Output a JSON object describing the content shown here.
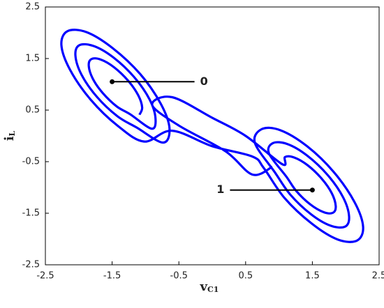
{
  "chart_data": {
    "type": "line",
    "xlabel": "v",
    "xlabel_sub": "C1",
    "ylabel": "i",
    "ylabel_sub": "L",
    "xlim": [
      -2.5,
      2.5
    ],
    "xticks": [
      -2.5,
      -1.5,
      -0.5,
      0.5,
      1.5,
      2.5
    ],
    "ylim": [
      -2.5,
      2.5
    ],
    "yticks": [
      -2.5,
      -1.5,
      -0.5,
      0.5,
      1.5,
      2.5
    ],
    "series": [
      {
        "color": "#0000ff",
        "x": [
          -1.09,
          -1.05,
          -1.11,
          -1.26,
          -1.47,
          -1.67,
          -1.81,
          -1.85,
          -1.79,
          -1.64,
          -1.43,
          -1.23,
          -0.91,
          -0.85,
          -0.94,
          -1.17,
          -1.48,
          -1.77,
          -1.99,
          -2.05,
          -1.96,
          -1.73,
          -1.42,
          -1.13,
          -0.74,
          -0.64,
          -0.77,
          -1.08,
          -1.49,
          -1.88,
          -2.17,
          -2.26,
          -2.13,
          -1.82,
          -1.42,
          -1.02,
          -0.6,
          0.0,
          0.6,
          0.77,
          1.08,
          1.49,
          1.88,
          2.17,
          2.26,
          2.13,
          1.82,
          1.42,
          1.02,
          0.74,
          0.64,
          0.94,
          1.17,
          1.48,
          1.77,
          1.99,
          2.05,
          1.96,
          1.73,
          1.42,
          1.13,
          0.91,
          0.85,
          1.11,
          1.26,
          1.47,
          1.67,
          1.81,
          1.85,
          1.79,
          1.64,
          1.43,
          1.23,
          1.09,
          1.05,
          0.5,
          0.0,
          -0.6,
          -0.9,
          -0.5,
          0.2,
          0.6,
          0.9
        ],
        "values": [
          0.41,
          0.55,
          0.79,
          1.07,
          1.33,
          1.48,
          1.49,
          1.36,
          1.11,
          0.83,
          0.57,
          0.42,
          0.14,
          0.34,
          0.71,
          1.14,
          1.52,
          1.74,
          1.76,
          1.56,
          1.19,
          0.76,
          0.38,
          0.16,
          -0.13,
          0.14,
          0.62,
          1.2,
          1.7,
          2.01,
          2.03,
          1.76,
          1.28,
          0.7,
          0.2,
          -0.11,
          0.1,
          -0.2,
          -0.4,
          -0.62,
          -1.2,
          -1.7,
          -2.01,
          -2.03,
          -1.76,
          -1.28,
          -0.7,
          -0.2,
          0.11,
          0.13,
          -0.14,
          -0.71,
          -1.14,
          -1.52,
          -1.74,
          -1.76,
          -1.56,
          -1.19,
          -0.76,
          -0.38,
          -0.16,
          -0.14,
          -0.34,
          -0.79,
          -1.07,
          -1.33,
          -1.48,
          -1.49,
          -1.36,
          -1.11,
          -0.83,
          -0.57,
          -0.42,
          -0.41,
          -0.55,
          0.0,
          0.35,
          0.75,
          0.6,
          0.2,
          -0.3,
          -0.75,
          -0.6
        ]
      }
    ],
    "annotations": [
      {
        "text": "0",
        "x": -1.5,
        "y": 1.05,
        "side": "right"
      },
      {
        "text": "1",
        "x": 1.5,
        "y": -1.05,
        "side": "left"
      }
    ]
  }
}
